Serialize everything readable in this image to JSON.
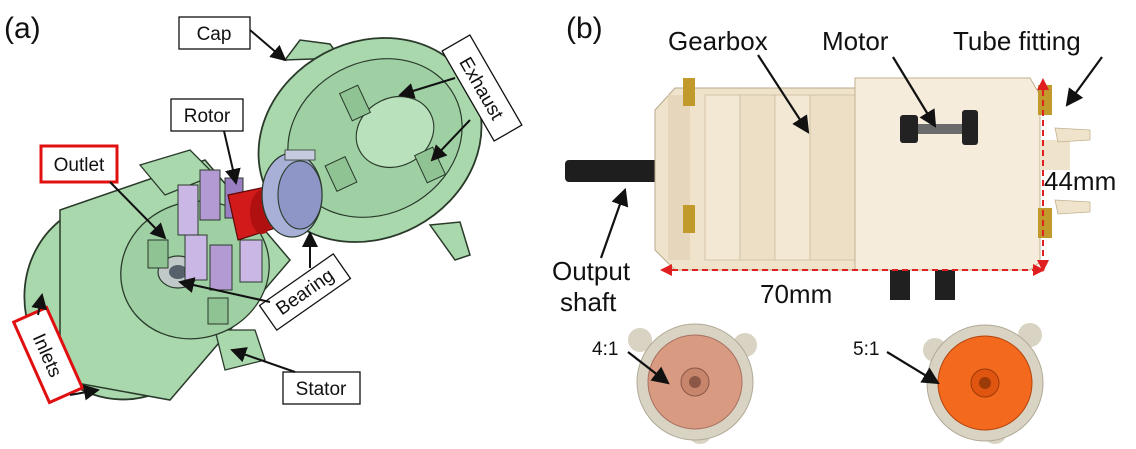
{
  "panel_a": {
    "letter": "(a)",
    "labels": {
      "cap": "Cap",
      "exhaust": "Exhaust",
      "rotor": "Rotor",
      "outlet": "Outlet",
      "bearing": "Bearing",
      "inlets": "Inlets",
      "stator": "Stator"
    }
  },
  "panel_b": {
    "letter": "(b)",
    "labels": {
      "gearbox": "Gearbox",
      "motor": "Motor",
      "tube_fitting": "Tube fitting",
      "height_dim": "44mm",
      "output_shaft_line1": "Output",
      "output_shaft_line2": "shaft",
      "length_dim": "70mm",
      "ratio_left": "4:1",
      "ratio_right": "5:1"
    }
  },
  "colors": {
    "part_green": "#a9d8ad",
    "rotor_red": "#d21a1a",
    "rotor_purple": "#b49ad2",
    "bearing_blue": "#8e96c8",
    "highlight_red": "#e01010",
    "plastic_ivory": "#efe3cc",
    "gear_orange": "#f36a1e",
    "gear_pink": "#d99a82",
    "dim_red": "#e02020"
  }
}
